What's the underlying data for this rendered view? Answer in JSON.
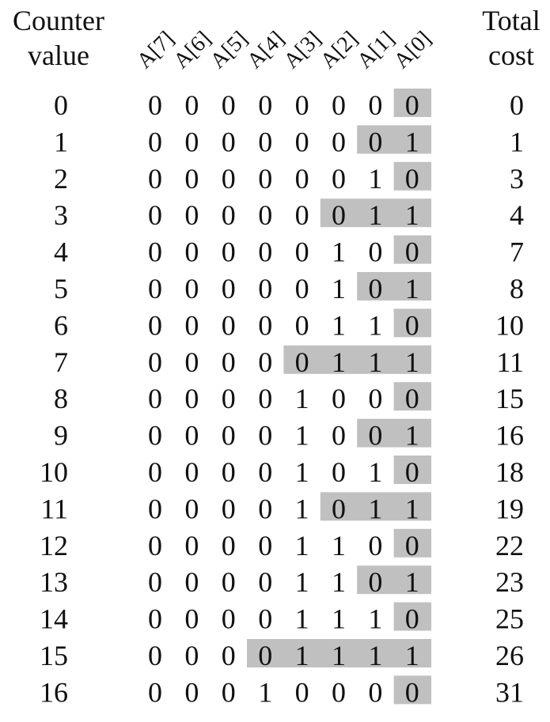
{
  "headers": {
    "counter_line1": "Counter",
    "counter_line2": "value",
    "total_line1": "Total",
    "total_line2": "cost"
  },
  "bit_labels": [
    "A[7]",
    "A[6]",
    "A[5]",
    "A[4]",
    "A[3]",
    "A[2]",
    "A[1]",
    "A[0]"
  ],
  "colors": {
    "highlight": "#c0c0c0",
    "text": "#111111",
    "background": "#ffffff"
  },
  "rows": [
    {
      "counter": "0",
      "bits": [
        "0",
        "0",
        "0",
        "0",
        "0",
        "0",
        "0",
        "0"
      ],
      "shaded_bits": 1,
      "total": "0"
    },
    {
      "counter": "1",
      "bits": [
        "0",
        "0",
        "0",
        "0",
        "0",
        "0",
        "0",
        "1"
      ],
      "shaded_bits": 2,
      "total": "1"
    },
    {
      "counter": "2",
      "bits": [
        "0",
        "0",
        "0",
        "0",
        "0",
        "0",
        "1",
        "0"
      ],
      "shaded_bits": 1,
      "total": "3"
    },
    {
      "counter": "3",
      "bits": [
        "0",
        "0",
        "0",
        "0",
        "0",
        "0",
        "1",
        "1"
      ],
      "shaded_bits": 3,
      "total": "4"
    },
    {
      "counter": "4",
      "bits": [
        "0",
        "0",
        "0",
        "0",
        "0",
        "1",
        "0",
        "0"
      ],
      "shaded_bits": 1,
      "total": "7"
    },
    {
      "counter": "5",
      "bits": [
        "0",
        "0",
        "0",
        "0",
        "0",
        "1",
        "0",
        "1"
      ],
      "shaded_bits": 2,
      "total": "8"
    },
    {
      "counter": "6",
      "bits": [
        "0",
        "0",
        "0",
        "0",
        "0",
        "1",
        "1",
        "0"
      ],
      "shaded_bits": 1,
      "total": "10"
    },
    {
      "counter": "7",
      "bits": [
        "0",
        "0",
        "0",
        "0",
        "0",
        "1",
        "1",
        "1"
      ],
      "shaded_bits": 4,
      "total": "11"
    },
    {
      "counter": "8",
      "bits": [
        "0",
        "0",
        "0",
        "0",
        "1",
        "0",
        "0",
        "0"
      ],
      "shaded_bits": 1,
      "total": "15"
    },
    {
      "counter": "9",
      "bits": [
        "0",
        "0",
        "0",
        "0",
        "1",
        "0",
        "0",
        "1"
      ],
      "shaded_bits": 2,
      "total": "16"
    },
    {
      "counter": "10",
      "bits": [
        "0",
        "0",
        "0",
        "0",
        "1",
        "0",
        "1",
        "0"
      ],
      "shaded_bits": 1,
      "total": "18"
    },
    {
      "counter": "11",
      "bits": [
        "0",
        "0",
        "0",
        "0",
        "1",
        "0",
        "1",
        "1"
      ],
      "shaded_bits": 3,
      "total": "19"
    },
    {
      "counter": "12",
      "bits": [
        "0",
        "0",
        "0",
        "0",
        "1",
        "1",
        "0",
        "0"
      ],
      "shaded_bits": 1,
      "total": "22"
    },
    {
      "counter": "13",
      "bits": [
        "0",
        "0",
        "0",
        "0",
        "1",
        "1",
        "0",
        "1"
      ],
      "shaded_bits": 2,
      "total": "23"
    },
    {
      "counter": "14",
      "bits": [
        "0",
        "0",
        "0",
        "0",
        "1",
        "1",
        "1",
        "0"
      ],
      "shaded_bits": 1,
      "total": "25"
    },
    {
      "counter": "15",
      "bits": [
        "0",
        "0",
        "0",
        "0",
        "1",
        "1",
        "1",
        "1"
      ],
      "shaded_bits": 5,
      "total": "26"
    },
    {
      "counter": "16",
      "bits": [
        "0",
        "0",
        "0",
        "1",
        "0",
        "0",
        "0",
        "0"
      ],
      "shaded_bits": 1,
      "total": "31"
    }
  ]
}
